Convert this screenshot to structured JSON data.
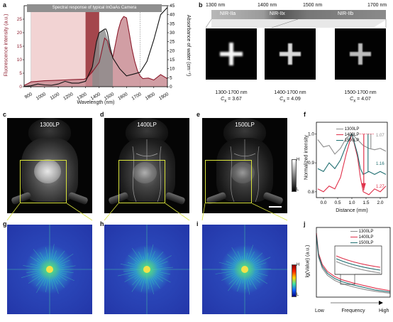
{
  "panels": {
    "a": "a",
    "b": "b",
    "c": "c",
    "d": "d",
    "e": "e",
    "f": "f",
    "g": "g",
    "h": "h",
    "i": "i",
    "j": "j"
  },
  "panel_a": {
    "banner": "Spectral response of typical InGaAs Camera",
    "ylabel_left": "Fluorescence intensity (a.u.)",
    "ylabel_right": "Absorbance of water (cm⁻¹)",
    "xlabel": "Wavelength (nm)",
    "xticks": [
      "900",
      "1000",
      "1100",
      "1200",
      "1300",
      "1400",
      "1500",
      "1600",
      "1700",
      "1800",
      "1900"
    ],
    "yticks_left": [
      "0",
      "5",
      "10",
      "15",
      "20",
      "25"
    ],
    "yticks_right": [
      "0",
      "5",
      "10",
      "15",
      "20",
      "25",
      "30",
      "35",
      "40",
      "45"
    ],
    "colors": {
      "fluor": "#8b1a2b",
      "fluor_fill": "#c98d94",
      "water": "#111111",
      "shade_light": "#f2d3d3",
      "shade_dark": "#a4464c",
      "gray": "#8a8a8a"
    }
  },
  "panel_b": {
    "wavelengths": [
      "1300 nm",
      "1400 nm",
      "1500 nm",
      "1700 nm"
    ],
    "bands": [
      "NIR-IIa",
      "NIR-IIx",
      "NIR-IIb"
    ],
    "tiles": [
      {
        "range": "1300-1700 nm",
        "cx": "C",
        "cx_sub": "x",
        "value": "= 3.67"
      },
      {
        "range": "1400-1700 nm",
        "cx": "C",
        "cx_sub": "x",
        "value": "= 4.09"
      },
      {
        "range": "1500-1700 nm",
        "cx": "C",
        "cx_sub": "x",
        "value": "= 4.07"
      }
    ]
  },
  "mice": [
    {
      "label": "1300LP"
    },
    {
      "label": "1400LP"
    },
    {
      "label": "1500LP"
    }
  ],
  "colorbar_gray": {
    "high": "H",
    "low": "L"
  },
  "colorbar_jet": {
    "high": "H",
    "low": "L"
  },
  "panel_f": {
    "ylabel": "Normalized intensity",
    "xlabel": "Distance (mm)",
    "xticks": [
      "0.0",
      "0.5",
      "1.0",
      "1.5",
      "2.0"
    ],
    "yticks": [
      "0.8",
      "0.9",
      "1.0"
    ],
    "legend": [
      "1300LP",
      "1400LP",
      "1500LP"
    ],
    "ratios": [
      "1.07",
      "1.16",
      "1.27"
    ],
    "colors": {
      "s1300": "#8c8c8c",
      "s1400": "#e0324b",
      "s1500": "#1f6e70"
    }
  },
  "panel_j": {
    "ylabel": "lg(Value) (a.u.)",
    "xlabel": "Frequency",
    "x_low": "Low",
    "x_high": "High",
    "legend": [
      "1300LP",
      "1400LP",
      "1500LP"
    ]
  },
  "chart_data": [
    {
      "type": "line",
      "title": "Spectral response of typical InGaAs Camera",
      "xlabel": "Wavelength (nm)",
      "ylabel": "Fluorescence intensity (a.u.)",
      "ylabel_right": "Absorbance of water (cm⁻¹)",
      "xlim": [
        850,
        1900
      ],
      "ylim": [
        0,
        30
      ],
      "ylim_right": [
        0,
        45
      ],
      "series": [
        {
          "x": [
            850,
            880,
            900,
            950,
            1000,
            1050,
            1100,
            1150,
            1200,
            1250,
            1290,
            1310,
            1350,
            1400,
            1420,
            1440,
            1460,
            1480,
            1500,
            1520,
            1540,
            1560,
            1580,
            1600,
            1620,
            1640,
            1660,
            1680,
            1700,
            1720,
            1760,
            1800,
            1850,
            1900
          ],
          "values": [
            0.5,
            1.2,
            1.8,
            2.0,
            2.2,
            2.3,
            2.4,
            2.5,
            2.6,
            2.7,
            2.8,
            3.2,
            5.5,
            9.0,
            13.5,
            18.0,
            17.0,
            13.0,
            11.0,
            16.0,
            21.0,
            24.5,
            26.0,
            25.5,
            20.0,
            14.0,
            9.5,
            6.0,
            4.0,
            3.0,
            3.2,
            2.5,
            4.5,
            3.0
          ]
        },
        {
          "x": [
            850,
            900,
            950,
            1000,
            1050,
            1100,
            1150,
            1200,
            1250,
            1300,
            1350,
            1380,
            1400,
            1420,
            1440,
            1450,
            1460,
            1480,
            1500,
            1550,
            1600,
            1650,
            1700,
            1750,
            1800,
            1850,
            1900
          ],
          "values": [
            0.2,
            0.5,
            1.5,
            1.0,
            0.8,
            1.5,
            3.0,
            2.0,
            2.0,
            3.0,
            11.0,
            25.0,
            30.0,
            31.0,
            32.0,
            32.0,
            30.0,
            22.0,
            16.0,
            10.0,
            6.0,
            7.0,
            8.0,
            14.0,
            26.0,
            40.0,
            44.0
          ]
        }
      ]
    },
    {
      "type": "line",
      "title": "",
      "xlabel": "Distance (mm)",
      "ylabel": "Normalized intensity",
      "xlim": [
        -0.25,
        2.25
      ],
      "ylim": [
        0.78,
        1.04
      ],
      "series": [
        {
          "name": "1300LP",
          "x": [
            -0.2,
            0.0,
            0.2,
            0.4,
            0.6,
            0.8,
            1.0,
            1.2,
            1.4,
            1.6,
            1.8,
            2.0,
            2.2
          ],
          "values": [
            0.98,
            0.955,
            0.96,
            0.93,
            0.95,
            0.985,
            1.0,
            0.98,
            0.96,
            0.95,
            0.945,
            0.95,
            0.94
          ]
        },
        {
          "name": "1400LP",
          "x": [
            -0.2,
            0.0,
            0.2,
            0.4,
            0.6,
            0.8,
            1.0,
            1.2,
            1.3,
            1.4,
            1.6,
            1.8,
            2.0,
            2.2
          ],
          "values": [
            0.81,
            0.8,
            0.82,
            0.81,
            0.85,
            0.93,
            1.0,
            0.92,
            0.85,
            0.8,
            0.79,
            0.81,
            0.8,
            0.82
          ]
        },
        {
          "name": "1500LP",
          "x": [
            -0.2,
            0.0,
            0.2,
            0.4,
            0.6,
            0.8,
            1.0,
            1.2,
            1.3,
            1.4,
            1.6,
            1.8,
            2.0,
            2.2
          ],
          "values": [
            0.88,
            0.87,
            0.9,
            0.88,
            0.91,
            0.96,
            1.0,
            0.93,
            0.88,
            0.86,
            0.87,
            0.86,
            0.87,
            0.86
          ]
        }
      ]
    },
    {
      "type": "line",
      "title": "",
      "xlabel": "Frequency",
      "ylabel": "lg(Value) (a.u.)",
      "categories": [
        "Low",
        "High"
      ],
      "series": [
        {
          "name": "1300LP",
          "x": [
            0.0,
            0.03,
            0.08,
            0.15,
            0.25,
            0.35,
            0.5,
            0.65,
            0.8,
            1.0
          ],
          "values": [
            0.95,
            0.62,
            0.45,
            0.34,
            0.26,
            0.21,
            0.16,
            0.12,
            0.09,
            0.06
          ]
        },
        {
          "name": "1400LP",
          "x": [
            0.0,
            0.03,
            0.08,
            0.15,
            0.25,
            0.35,
            0.5,
            0.65,
            0.8,
            1.0
          ],
          "values": [
            1.0,
            0.68,
            0.51,
            0.4,
            0.32,
            0.27,
            0.22,
            0.18,
            0.14,
            0.1
          ]
        },
        {
          "name": "1500LP",
          "x": [
            0.0,
            0.03,
            0.08,
            0.15,
            0.25,
            0.35,
            0.5,
            0.65,
            0.8,
            1.0
          ],
          "values": [
            0.97,
            0.65,
            0.48,
            0.37,
            0.29,
            0.24,
            0.19,
            0.15,
            0.11,
            0.08
          ]
        }
      ]
    }
  ]
}
